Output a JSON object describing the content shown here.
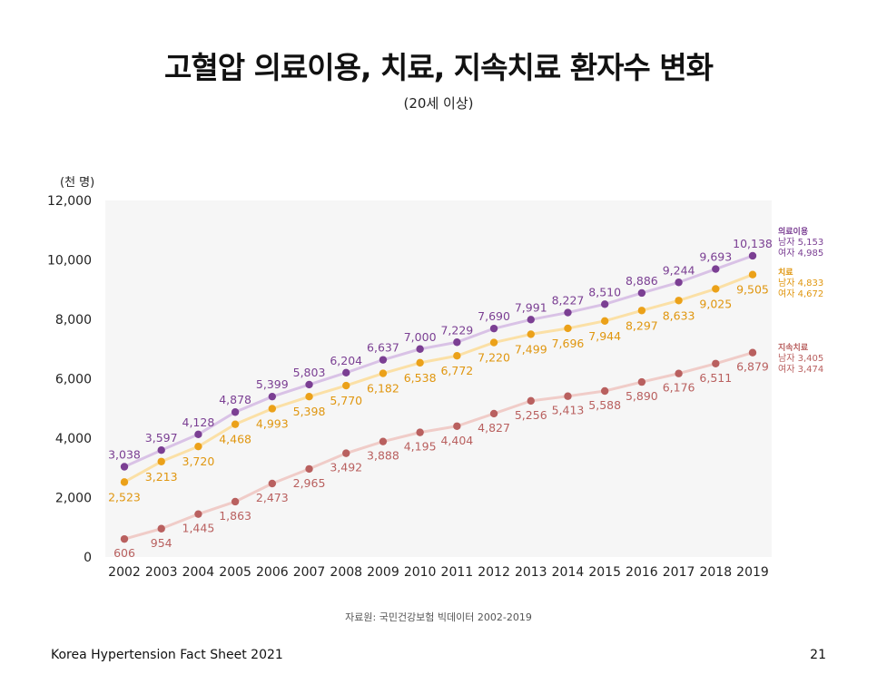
{
  "page": {
    "title": "고혈압 의료이용, 치료, 지속치료 환자수 변화",
    "subtitle": "(20세 이상)",
    "unit_label": "(천 명)",
    "source": "자료원: 국민건강보험 빅데이터 2002-2019",
    "footer_left": "Korea Hypertension Fact Sheet 2021",
    "page_number": "21"
  },
  "chart_data": {
    "type": "line",
    "categories": [
      "2002",
      "2003",
      "2004",
      "2005",
      "2006",
      "2007",
      "2008",
      "2009",
      "2010",
      "2011",
      "2012",
      "2013",
      "2014",
      "2015",
      "2016",
      "2017",
      "2018",
      "2019"
    ],
    "ylim": [
      0,
      12000
    ],
    "yticks": [
      "0",
      "2,000",
      "4,000",
      "6,000",
      "8,000",
      "10,000",
      "12,000"
    ],
    "grid": false,
    "series": [
      {
        "name": "의료이용",
        "line_color": "#d9c2e6",
        "dot_color": "#7b3f93",
        "label_color": "#7b3f93",
        "values": [
          3038,
          3597,
          4128,
          4878,
          5399,
          5803,
          6204,
          6637,
          7000,
          7229,
          7690,
          7991,
          8227,
          8510,
          8886,
          9244,
          9693,
          10138
        ],
        "labels": [
          "3,038",
          "3,597",
          "4,128",
          "4,878",
          "5,399",
          "5,803",
          "6,204",
          "6,637",
          "7,000",
          "7,229",
          "7,690",
          "7,991",
          "8,227",
          "8,510",
          "8,886",
          "9,244",
          "9,693",
          "10,138"
        ],
        "legend_male": "남자 5,153",
        "legend_female": "여자 4,985"
      },
      {
        "name": "치료",
        "line_color": "#fbe0a6",
        "dot_color": "#eba119",
        "label_color": "#e0960f",
        "values": [
          2523,
          3213,
          3720,
          4468,
          4993,
          5398,
          5770,
          6182,
          6538,
          6772,
          7220,
          7499,
          7696,
          7944,
          8297,
          8633,
          9025,
          9505
        ],
        "labels": [
          "2,523",
          "3,213",
          "3,720",
          "4,468",
          "4,993",
          "5,398",
          "5,770",
          "6,182",
          "6,538",
          "6,772",
          "7,220",
          "7,499",
          "7,696",
          "7,944",
          "8,297",
          "8,633",
          "9,025",
          "9,505"
        ],
        "legend_male": "남자 4,833",
        "legend_female": "여자 4,672"
      },
      {
        "name": "지속치료",
        "line_color": "#f0ccc8",
        "dot_color": "#b9605f",
        "label_color": "#b9605f",
        "values": [
          606,
          954,
          1445,
          1863,
          2473,
          2965,
          3492,
          3888,
          4195,
          4404,
          4827,
          5256,
          5413,
          5588,
          5890,
          6176,
          6511,
          6879
        ],
        "labels": [
          "606",
          "954",
          "1,445",
          "1,863",
          "2,473",
          "2,965",
          "3,492",
          "3,888",
          "4,195",
          "4,404",
          "4,827",
          "5,256",
          "5,413",
          "5,588",
          "5,890",
          "6,176",
          "6,511",
          "6,879"
        ],
        "legend_male": "남자 3,405",
        "legend_female": "여자 3,474"
      }
    ]
  }
}
